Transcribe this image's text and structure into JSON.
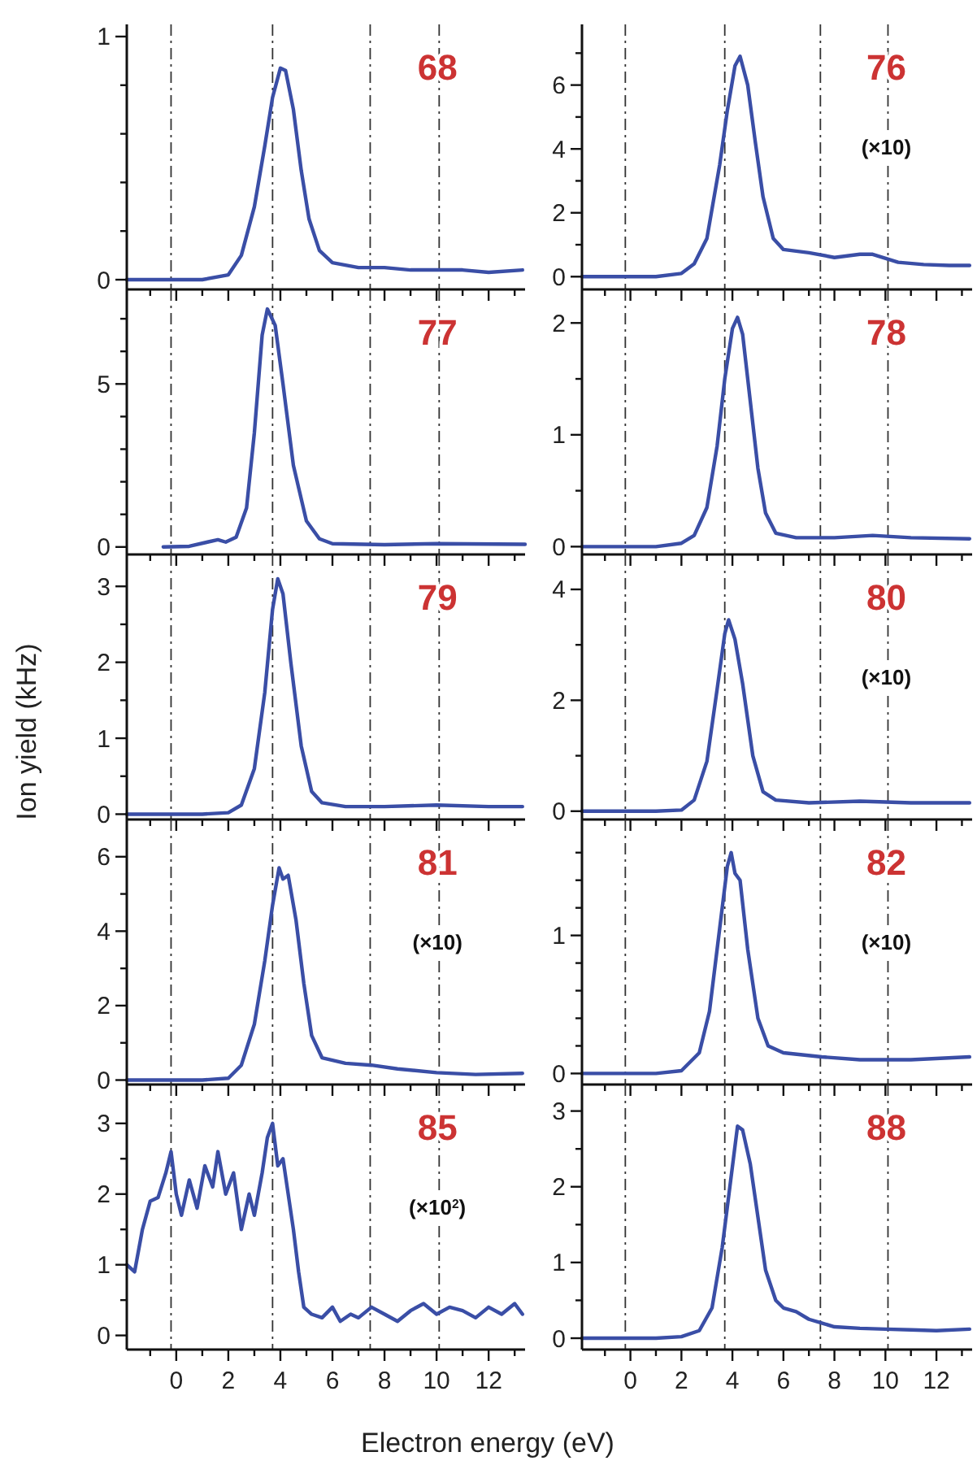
{
  "chart_data": [
    {
      "type": "line",
      "title": "68",
      "tick_labels": "y",
      "xlim": [
        -1.9,
        13.4
      ],
      "xticks": [
        {
          "value": -1,
          "label": null
        },
        0,
        {
          "value": 1,
          "label": null
        },
        2,
        {
          "value": 3,
          "label": null
        },
        4,
        {
          "value": 5,
          "label": null
        },
        6,
        {
          "value": 7,
          "label": null
        },
        8,
        {
          "value": 9,
          "label": null
        },
        10,
        {
          "value": 11,
          "label": null
        },
        12,
        {
          "value": 13,
          "label": null
        }
      ],
      "ylim": [
        -0.04,
        1.05
      ],
      "yticks": [
        0,
        {
          "value": 0.2,
          "label": null
        },
        {
          "value": 0.4,
          "label": null
        },
        {
          "value": 0.6,
          "label": null
        },
        {
          "value": 0.8,
          "label": null
        },
        1
      ],
      "ref_lines": [
        {
          "axis": "x",
          "value": -0.2,
          "line_style": "dashed",
          "color": "#333333"
        },
        {
          "axis": "x",
          "value": 3.7,
          "line_style": "dashed",
          "color": "#333333"
        },
        {
          "axis": "x",
          "value": 7.45,
          "line_style": "dashed",
          "color": "#333333"
        },
        {
          "axis": "x",
          "value": 10.1,
          "line_style": "dashed",
          "color": "#333333"
        }
      ],
      "x": [
        -1.9,
        1,
        2,
        2.5,
        3,
        3.4,
        3.7,
        4.0,
        4.2,
        4.5,
        4.8,
        5.1,
        5.5,
        6,
        7,
        8,
        9,
        10,
        11,
        12,
        13.3
      ],
      "series": [
        {
          "color": "#3a4ea6",
          "values": [
            0,
            0,
            0.02,
            0.1,
            0.3,
            0.55,
            0.75,
            0.87,
            0.86,
            0.7,
            0.45,
            0.25,
            0.12,
            0.07,
            0.05,
            0.05,
            0.04,
            0.04,
            0.04,
            0.03,
            0.04
          ]
        }
      ]
    },
    {
      "type": "line",
      "title": "76",
      "annotations": [
        "(×10)"
      ],
      "tick_labels": "y",
      "xlim": [
        -1.9,
        13.4
      ],
      "xticks": [
        {
          "value": -1,
          "label": null
        },
        0,
        {
          "value": 1,
          "label": null
        },
        2,
        {
          "value": 3,
          "label": null
        },
        4,
        {
          "value": 5,
          "label": null
        },
        6,
        {
          "value": 7,
          "label": null
        },
        8,
        {
          "value": 9,
          "label": null
        },
        10,
        {
          "value": 11,
          "label": null
        },
        12,
        {
          "value": 13,
          "label": null
        }
      ],
      "ylim": [
        -0.4,
        7.9
      ],
      "yticks": [
        0,
        {
          "value": 1,
          "label": null
        },
        2,
        {
          "value": 3,
          "label": null
        },
        4,
        {
          "value": 5,
          "label": null
        },
        6,
        {
          "value": 7,
          "label": null
        }
      ],
      "ref_lines": [
        {
          "axis": "x",
          "value": -0.2,
          "line_style": "dashed",
          "color": "#333333"
        },
        {
          "axis": "x",
          "value": 3.7,
          "line_style": "dashed",
          "color": "#333333"
        },
        {
          "axis": "x",
          "value": 7.45,
          "line_style": "dashed",
          "color": "#333333"
        },
        {
          "axis": "x",
          "value": 10.1,
          "line_style": "dashed",
          "color": "#333333"
        }
      ],
      "x": [
        -1.9,
        1,
        2,
        2.5,
        3,
        3.5,
        3.8,
        4.1,
        4.3,
        4.6,
        4.9,
        5.2,
        5.6,
        6,
        7,
        8,
        9,
        9.5,
        10.5,
        11.5,
        12.5,
        13.3
      ],
      "series": [
        {
          "color": "#3a4ea6",
          "values": [
            0,
            0,
            0.1,
            0.4,
            1.2,
            3.5,
            5.2,
            6.6,
            6.9,
            6,
            4.2,
            2.5,
            1.2,
            0.85,
            0.75,
            0.6,
            0.7,
            0.7,
            0.45,
            0.38,
            0.35,
            0.35
          ]
        }
      ]
    },
    {
      "type": "line",
      "title": "77",
      "tick_labels": "y",
      "xlim": [
        -1.9,
        13.4
      ],
      "xticks": [
        {
          "value": -1,
          "label": null
        },
        0,
        {
          "value": 1,
          "label": null
        },
        2,
        {
          "value": 3,
          "label": null
        },
        4,
        {
          "value": 5,
          "label": null
        },
        6,
        {
          "value": 7,
          "label": null
        },
        8,
        {
          "value": 9,
          "label": null
        },
        10,
        {
          "value": 11,
          "label": null
        },
        12,
        {
          "value": 13,
          "label": null
        }
      ],
      "ylim": [
        -0.23,
        7.9
      ],
      "yticks": [
        0,
        {
          "value": 1,
          "label": null
        },
        {
          "value": 2,
          "label": null
        },
        {
          "value": 3,
          "label": null
        },
        {
          "value": 4,
          "label": null
        },
        5,
        {
          "value": 6,
          "label": null
        },
        {
          "value": 7,
          "label": null
        }
      ],
      "ref_lines": [
        {
          "axis": "x",
          "value": -0.2,
          "line_style": "dashed",
          "color": "#333333"
        },
        {
          "axis": "x",
          "value": 3.7,
          "line_style": "dashed",
          "color": "#333333"
        },
        {
          "axis": "x",
          "value": 7.45,
          "line_style": "dashed",
          "color": "#333333"
        },
        {
          "axis": "x",
          "value": 10.1,
          "line_style": "dashed",
          "color": "#333333"
        }
      ],
      "x": [
        -0.5,
        0.5,
        1.2,
        1.6,
        1.9,
        2.3,
        2.7,
        3.0,
        3.3,
        3.5,
        3.8,
        4.1,
        4.5,
        5,
        5.5,
        6,
        8,
        10,
        13.4
      ],
      "series": [
        {
          "color": "#3a4ea6",
          "values": [
            0,
            0.02,
            0.15,
            0.22,
            0.15,
            0.3,
            1.2,
            3.5,
            6.5,
            7.3,
            6.8,
            5,
            2.5,
            0.8,
            0.25,
            0.1,
            0.07,
            0.1,
            0.08
          ]
        }
      ]
    },
    {
      "type": "line",
      "title": "78",
      "tick_labels": "y",
      "xlim": [
        -1.9,
        13.4
      ],
      "xticks": [
        {
          "value": -1,
          "label": null
        },
        0,
        {
          "value": 1,
          "label": null
        },
        2,
        {
          "value": 3,
          "label": null
        },
        4,
        {
          "value": 5,
          "label": null
        },
        6,
        {
          "value": 7,
          "label": null
        },
        8,
        {
          "value": 9,
          "label": null
        },
        10,
        {
          "value": 11,
          "label": null
        },
        12,
        {
          "value": 13,
          "label": null
        }
      ],
      "ylim": [
        -0.07,
        2.3
      ],
      "yticks": [
        0,
        {
          "value": 0.5,
          "label": null
        },
        1,
        {
          "value": 1.5,
          "label": null
        },
        2
      ],
      "ref_lines": [
        {
          "axis": "x",
          "value": -0.2,
          "line_style": "dashed",
          "color": "#333333"
        },
        {
          "axis": "x",
          "value": 3.7,
          "line_style": "dashed",
          "color": "#333333"
        },
        {
          "axis": "x",
          "value": 7.45,
          "line_style": "dashed",
          "color": "#333333"
        },
        {
          "axis": "x",
          "value": 10.1,
          "line_style": "dashed",
          "color": "#333333"
        }
      ],
      "x": [
        -1.9,
        1,
        2,
        2.5,
        3,
        3.4,
        3.7,
        4.0,
        4.2,
        4.4,
        4.7,
        5,
        5.3,
        5.7,
        6.5,
        8,
        9.5,
        11,
        13.3
      ],
      "series": [
        {
          "color": "#3a4ea6",
          "values": [
            0,
            0,
            0.03,
            0.1,
            0.35,
            0.9,
            1.5,
            1.95,
            2.05,
            1.9,
            1.3,
            0.7,
            0.3,
            0.12,
            0.08,
            0.08,
            0.1,
            0.08,
            0.07
          ]
        }
      ]
    },
    {
      "type": "line",
      "title": "79",
      "ylabel": "Ion yield (kHz)",
      "tick_labels": "y",
      "xlim": [
        -1.9,
        13.4
      ],
      "xticks": [
        {
          "value": -1,
          "label": null
        },
        0,
        {
          "value": 1,
          "label": null
        },
        2,
        {
          "value": 3,
          "label": null
        },
        4,
        {
          "value": 5,
          "label": null
        },
        6,
        {
          "value": 7,
          "label": null
        },
        8,
        {
          "value": 9,
          "label": null
        },
        10,
        {
          "value": 11,
          "label": null
        },
        12,
        {
          "value": 13,
          "label": null
        }
      ],
      "ylim": [
        -0.07,
        3.42
      ],
      "yticks": [
        0,
        {
          "value": 0.5,
          "label": null
        },
        1,
        {
          "value": 1.5,
          "label": null
        },
        2,
        {
          "value": 2.5,
          "label": null
        },
        3
      ],
      "ref_lines": [
        {
          "axis": "x",
          "value": -0.2,
          "line_style": "dashed",
          "color": "#333333"
        },
        {
          "axis": "x",
          "value": 3.7,
          "line_style": "dashed",
          "color": "#333333"
        },
        {
          "axis": "x",
          "value": 7.45,
          "line_style": "dashed",
          "color": "#333333"
        },
        {
          "axis": "x",
          "value": 10.1,
          "line_style": "dashed",
          "color": "#333333"
        }
      ],
      "x": [
        -1.9,
        1,
        2,
        2.5,
        3,
        3.4,
        3.7,
        3.9,
        4.1,
        4.4,
        4.8,
        5.2,
        5.6,
        6.5,
        8,
        10,
        12,
        13.3
      ],
      "series": [
        {
          "color": "#3a4ea6",
          "values": [
            0,
            0,
            0.02,
            0.12,
            0.6,
            1.6,
            2.7,
            3.1,
            2.9,
            2,
            0.9,
            0.3,
            0.15,
            0.1,
            0.1,
            0.12,
            0.1,
            0.1
          ]
        }
      ]
    },
    {
      "type": "line",
      "title": "80",
      "annotations": [
        "(×10)"
      ],
      "tick_labels": "y",
      "xlim": [
        -1.9,
        13.4
      ],
      "xticks": [
        {
          "value": -1,
          "label": null
        },
        0,
        {
          "value": 1,
          "label": null
        },
        2,
        {
          "value": 3,
          "label": null
        },
        4,
        {
          "value": 5,
          "label": null
        },
        6,
        {
          "value": 7,
          "label": null
        },
        8,
        {
          "value": 9,
          "label": null
        },
        10,
        {
          "value": 11,
          "label": null
        },
        12,
        {
          "value": 13,
          "label": null
        }
      ],
      "ylim": [
        -0.15,
        4.63
      ],
      "yticks": [
        0,
        {
          "value": 1,
          "label": null
        },
        2,
        {
          "value": 3,
          "label": null
        },
        4
      ],
      "ref_lines": [
        {
          "axis": "x",
          "value": -0.2,
          "line_style": "dashed",
          "color": "#333333"
        },
        {
          "axis": "x",
          "value": 3.7,
          "line_style": "dashed",
          "color": "#333333"
        },
        {
          "axis": "x",
          "value": 7.45,
          "line_style": "dashed",
          "color": "#333333"
        },
        {
          "axis": "x",
          "value": 10.1,
          "line_style": "dashed",
          "color": "#333333"
        }
      ],
      "x": [
        -1.9,
        1,
        2,
        2.5,
        3,
        3.4,
        3.7,
        3.85,
        4.1,
        4.4,
        4.8,
        5.2,
        5.7,
        7,
        9,
        11,
        13.3
      ],
      "series": [
        {
          "color": "#3a4ea6",
          "values": [
            0,
            0,
            0.02,
            0.2,
            0.9,
            2.2,
            3.2,
            3.45,
            3.1,
            2.3,
            1,
            0.35,
            0.2,
            0.15,
            0.18,
            0.15,
            0.15
          ]
        }
      ]
    },
    {
      "type": "line",
      "title": "81",
      "annotations": [
        "(×10)"
      ],
      "tick_labels": "y",
      "xlim": [
        -1.9,
        13.4
      ],
      "xticks": [
        {
          "value": -1,
          "label": null
        },
        0,
        {
          "value": 1,
          "label": null
        },
        2,
        {
          "value": 3,
          "label": null
        },
        4,
        {
          "value": 5,
          "label": null
        },
        6,
        {
          "value": 7,
          "label": null
        },
        8,
        {
          "value": 9,
          "label": null
        },
        10,
        {
          "value": 11,
          "label": null
        },
        12,
        {
          "value": 13,
          "label": null
        }
      ],
      "ylim": [
        -0.12,
        7.0
      ],
      "yticks": [
        0,
        {
          "value": 1,
          "label": null
        },
        2,
        {
          "value": 3,
          "label": null
        },
        4,
        {
          "value": 5,
          "label": null
        },
        6
      ],
      "ref_lines": [
        {
          "axis": "x",
          "value": -0.2,
          "line_style": "dashed",
          "color": "#333333"
        },
        {
          "axis": "x",
          "value": 3.7,
          "line_style": "dashed",
          "color": "#333333"
        },
        {
          "axis": "x",
          "value": 7.45,
          "line_style": "dashed",
          "color": "#333333"
        },
        {
          "axis": "x",
          "value": 10.1,
          "line_style": "dashed",
          "color": "#333333"
        }
      ],
      "x": [
        -1.9,
        1,
        2,
        2.5,
        3,
        3.4,
        3.7,
        3.95,
        4.1,
        4.3,
        4.6,
        4.9,
        5.2,
        5.6,
        6.5,
        7.5,
        8.5,
        10,
        11.5,
        13.3
      ],
      "series": [
        {
          "color": "#3a4ea6",
          "values": [
            0,
            0,
            0.05,
            0.4,
            1.5,
            3.2,
            4.7,
            5.7,
            5.4,
            5.5,
            4.3,
            2.6,
            1.2,
            0.6,
            0.45,
            0.4,
            0.3,
            0.2,
            0.15,
            0.18
          ]
        }
      ]
    },
    {
      "type": "line",
      "title": "82",
      "annotations": [
        "(×10)"
      ],
      "tick_labels": "y",
      "xlim": [
        -1.9,
        13.4
      ],
      "xticks": [
        {
          "value": -1,
          "label": null
        },
        0,
        {
          "value": 1,
          "label": null
        },
        2,
        {
          "value": 3,
          "label": null
        },
        4,
        {
          "value": 5,
          "label": null
        },
        6,
        {
          "value": 7,
          "label": null
        },
        8,
        {
          "value": 9,
          "label": null
        },
        10,
        {
          "value": 11,
          "label": null
        },
        12,
        {
          "value": 13,
          "label": null
        }
      ],
      "ylim": [
        -0.08,
        1.84
      ],
      "yticks": [
        0,
        {
          "value": 0.2,
          "label": null
        },
        {
          "value": 0.4,
          "label": null
        },
        {
          "value": 0.6,
          "label": null
        },
        {
          "value": 0.8,
          "label": null
        },
        1,
        {
          "value": 1.2,
          "label": null
        },
        {
          "value": 1.4,
          "label": null
        },
        {
          "value": 1.6,
          "label": null
        }
      ],
      "ref_lines": [
        {
          "axis": "x",
          "value": -0.2,
          "line_style": "dashed",
          "color": "#333333"
        },
        {
          "axis": "x",
          "value": 3.7,
          "line_style": "dashed",
          "color": "#333333"
        },
        {
          "axis": "x",
          "value": 7.45,
          "line_style": "dashed",
          "color": "#333333"
        },
        {
          "axis": "x",
          "value": 10.1,
          "line_style": "dashed",
          "color": "#333333"
        }
      ],
      "x": [
        -1.9,
        1,
        2,
        2.7,
        3.1,
        3.5,
        3.8,
        3.95,
        4.1,
        4.3,
        4.6,
        5,
        5.4,
        6,
        7.5,
        9,
        11,
        13.3
      ],
      "series": [
        {
          "color": "#3a4ea6",
          "values": [
            0,
            0,
            0.02,
            0.15,
            0.45,
            1.05,
            1.5,
            1.6,
            1.45,
            1.4,
            0.9,
            0.4,
            0.2,
            0.15,
            0.12,
            0.1,
            0.1,
            0.12
          ]
        }
      ]
    },
    {
      "type": "line",
      "title": "85",
      "annotations": [
        "(×10$^{2}$)"
      ],
      "xlabel": "Electron energy (eV)",
      "xlim": [
        -1.9,
        13.4
      ],
      "xticks": [
        {
          "value": -1,
          "label": null
        },
        0,
        {
          "value": 1,
          "label": null
        },
        2,
        {
          "value": 3,
          "label": null
        },
        4,
        {
          "value": 5,
          "label": null
        },
        6,
        {
          "value": 7,
          "label": null
        },
        8,
        {
          "value": 9,
          "label": null
        },
        10,
        {
          "value": 11,
          "label": null
        },
        12,
        {
          "value": 13,
          "label": null
        }
      ],
      "ylim": [
        -0.2,
        3.55
      ],
      "yticks": [
        0,
        {
          "value": 0.5,
          "label": null
        },
        1,
        {
          "value": 1.5,
          "label": null
        },
        2,
        {
          "value": 2.5,
          "label": null
        },
        3
      ],
      "ref_lines": [
        {
          "axis": "x",
          "value": -0.2,
          "line_style": "dashed",
          "color": "#333333"
        },
        {
          "axis": "x",
          "value": 3.7,
          "line_style": "dashed",
          "color": "#333333"
        },
        {
          "axis": "x",
          "value": 7.45,
          "line_style": "dashed",
          "color": "#333333"
        },
        {
          "axis": "x",
          "value": 10.1,
          "line_style": "dashed",
          "color": "#333333"
        }
      ],
      "x": [
        -1.9,
        -1.6,
        -1.3,
        -1,
        -0.7,
        -0.4,
        -0.2,
        0,
        0.2,
        0.5,
        0.8,
        1.1,
        1.4,
        1.6,
        1.9,
        2.2,
        2.5,
        2.8,
        3.0,
        3.3,
        3.5,
        3.7,
        3.9,
        4.1,
        4.3,
        4.5,
        4.7,
        4.9,
        5.2,
        5.6,
        6,
        6.3,
        6.7,
        7,
        7.5,
        8,
        8.5,
        9,
        9.5,
        10,
        10.5,
        11,
        11.5,
        12,
        12.5,
        13,
        13.3
      ],
      "series": [
        {
          "color": "#3a4ea6",
          "values": [
            1.0,
            0.9,
            1.5,
            1.9,
            1.95,
            2.3,
            2.6,
            2.0,
            1.7,
            2.2,
            1.8,
            2.4,
            2.1,
            2.6,
            2.0,
            2.3,
            1.5,
            2.0,
            1.7,
            2.3,
            2.8,
            3.0,
            2.4,
            2.5,
            2.0,
            1.5,
            0.9,
            0.4,
            0.3,
            0.25,
            0.4,
            0.2,
            0.3,
            0.25,
            0.4,
            0.3,
            0.2,
            0.35,
            0.45,
            0.3,
            0.4,
            0.35,
            0.25,
            0.4,
            0.3,
            0.45,
            0.3
          ]
        }
      ]
    },
    {
      "type": "line",
      "title": "88",
      "xlim": [
        -1.9,
        13.4
      ],
      "xticks": [
        {
          "value": -1,
          "label": null
        },
        0,
        {
          "value": 1,
          "label": null
        },
        2,
        {
          "value": 3,
          "label": null
        },
        4,
        {
          "value": 5,
          "label": null
        },
        6,
        {
          "value": 7,
          "label": null
        },
        8,
        {
          "value": 9,
          "label": null
        },
        10,
        {
          "value": 11,
          "label": null
        },
        12,
        {
          "value": 13,
          "label": null
        }
      ],
      "ylim": [
        -0.15,
        3.35
      ],
      "yticks": [
        0,
        {
          "value": 0.5,
          "label": null
        },
        1,
        {
          "value": 1.5,
          "label": null
        },
        2,
        {
          "value": 2.5,
          "label": null
        },
        3
      ],
      "ref_lines": [
        {
          "axis": "x",
          "value": -0.2,
          "line_style": "dashed",
          "color": "#333333"
        },
        {
          "axis": "x",
          "value": 3.7,
          "line_style": "dashed",
          "color": "#333333"
        },
        {
          "axis": "x",
          "value": 7.45,
          "line_style": "dashed",
          "color": "#333333"
        },
        {
          "axis": "x",
          "value": 10.1,
          "line_style": "dashed",
          "color": "#333333"
        }
      ],
      "x": [
        -1.9,
        1,
        2,
        2.7,
        3.2,
        3.6,
        3.9,
        4.2,
        4.4,
        4.7,
        5,
        5.3,
        5.7,
        6,
        6.5,
        7,
        7.5,
        8,
        9,
        10,
        11,
        12,
        13.3
      ],
      "series": [
        {
          "color": "#3a4ea6",
          "values": [
            0,
            0,
            0.02,
            0.1,
            0.4,
            1.2,
            2.0,
            2.8,
            2.75,
            2.3,
            1.6,
            0.9,
            0.5,
            0.4,
            0.35,
            0.25,
            0.2,
            0.15,
            0.13,
            0.12,
            0.11,
            0.1,
            0.12
          ]
        }
      ]
    }
  ]
}
